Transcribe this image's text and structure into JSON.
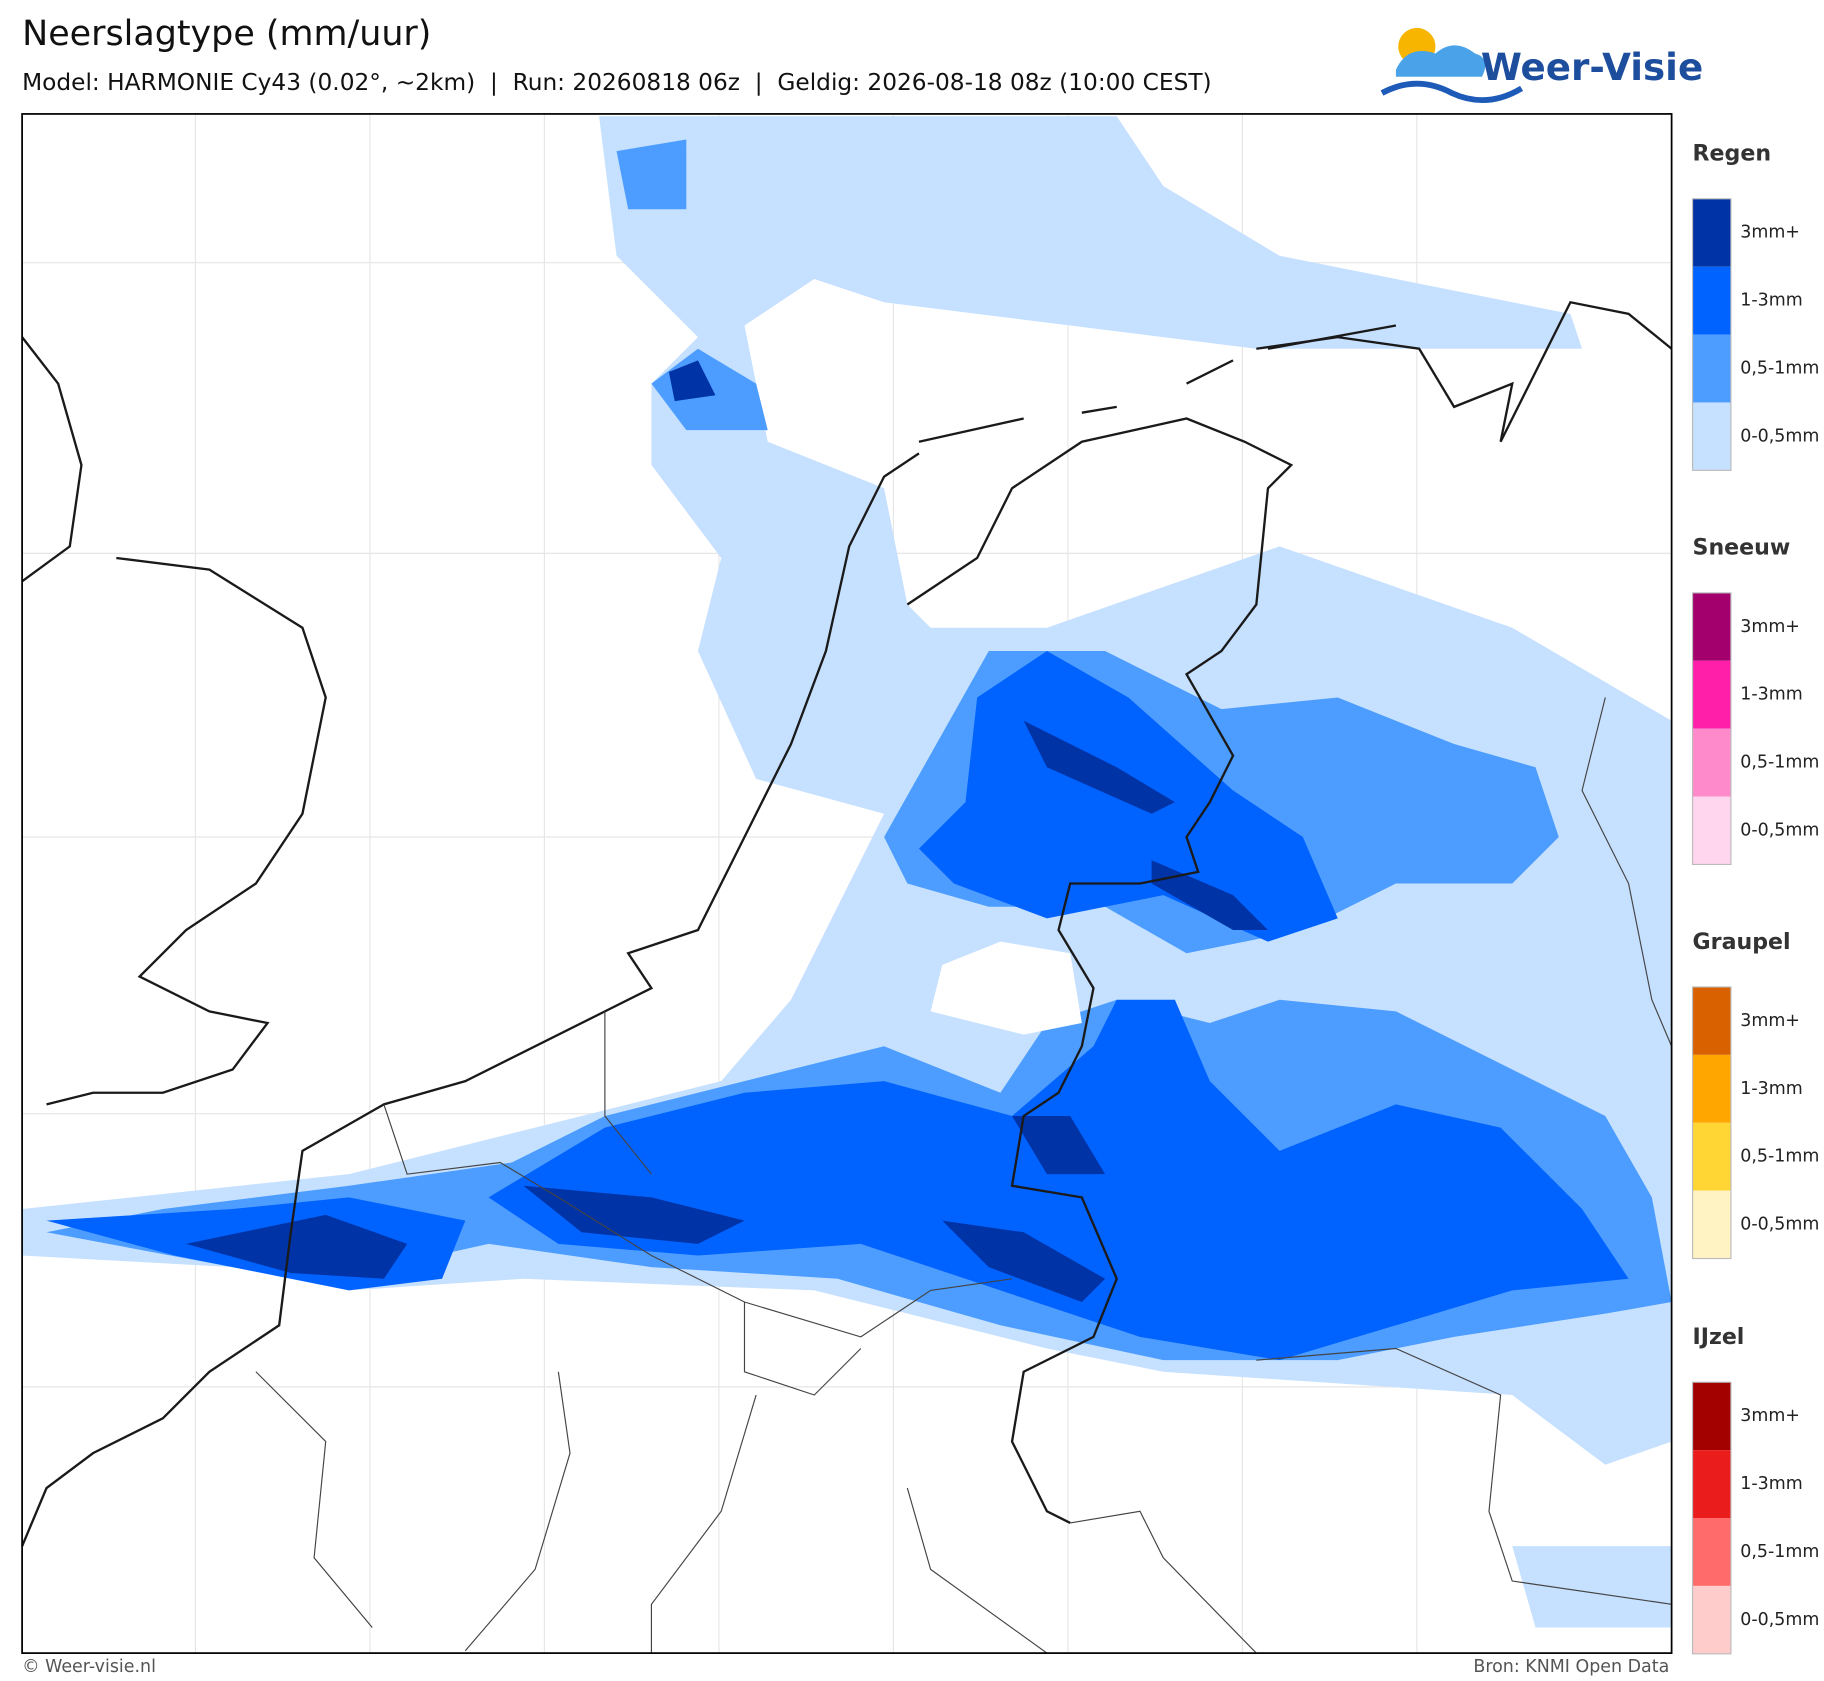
{
  "header": {
    "title": "Neerslagtype (mm/uur)",
    "subtitle": "Model: HARMONIE Cy43 (0.02°, ~2km)  |  Run: 20260818 06z  |  Geldig: 2026-08-18 08z (10:00 CEST)"
  },
  "logo": {
    "text": "Weer-Visie"
  },
  "legend": [
    {
      "title": "Regen",
      "items": [
        {
          "label": "3mm+",
          "color": "#0033a6"
        },
        {
          "label": "1-3mm",
          "color": "#0062ff"
        },
        {
          "label": "0,5-1mm",
          "color": "#4c9dff"
        },
        {
          "label": "0-0,5mm",
          "color": "#c6e0ff"
        }
      ]
    },
    {
      "title": "Sneeuw",
      "items": [
        {
          "label": "3mm+",
          "color": "#a3006e"
        },
        {
          "label": "1-3mm",
          "color": "#ff1fa8"
        },
        {
          "label": "0,5-1mm",
          "color": "#ff8acb"
        },
        {
          "label": "0-0,5mm",
          "color": "#ffd6ee"
        }
      ]
    },
    {
      "title": "Graupel",
      "items": [
        {
          "label": "3mm+",
          "color": "#d96100"
        },
        {
          "label": "1-3mm",
          "color": "#ffa600"
        },
        {
          "label": "0,5-1mm",
          "color": "#ffd633"
        },
        {
          "label": "0-0,5mm",
          "color": "#fff3c4"
        }
      ]
    },
    {
      "title": "IJzel",
      "items": [
        {
          "label": "3mm+",
          "color": "#a30000"
        },
        {
          "label": "1-3mm",
          "color": "#eb1c1c"
        },
        {
          "label": "0,5-1mm",
          "color": "#ff6b6b"
        },
        {
          "label": "0-0,5mm",
          "color": "#ffcccc"
        }
      ]
    }
  ],
  "footer": {
    "left": "© Weer-visie.nl",
    "right": "Bron: KNMI Open Data"
  }
}
